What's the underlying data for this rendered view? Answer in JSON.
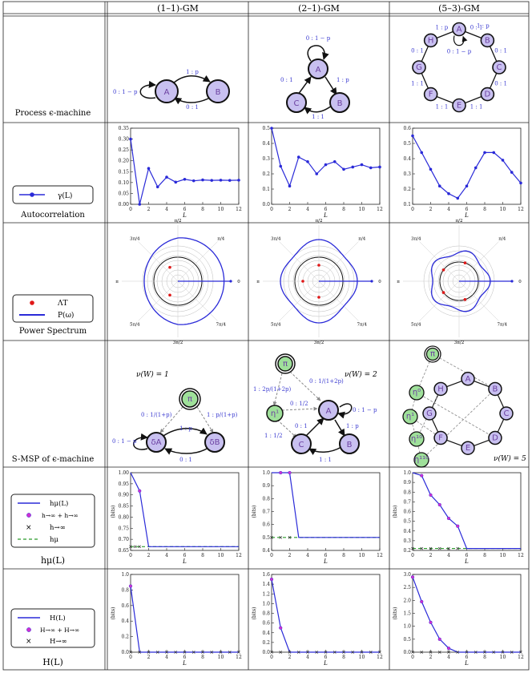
{
  "columns": [
    "(1–1)-GM",
    "(2–1)-GM",
    "(5–3)-GM"
  ],
  "rows": [
    "Process ϵ-machine",
    "Autocorrelation",
    "Power Spectrum",
    "S-MSP of ϵ-machine",
    "hμ(L)",
    "H(L)"
  ],
  "legends": {
    "autocorrelation": [
      "γ(L)"
    ],
    "power": [
      "ΛT",
      "P(ω)"
    ],
    "hmu": [
      "hμ(L)",
      "h→∞ + h→∞",
      "h→∞",
      "hμ"
    ],
    "H": [
      "H(L)",
      "H→∞ + H→∞",
      "H→∞"
    ]
  },
  "machines": {
    "m11": {
      "states": [
        "A",
        "B"
      ],
      "edges": [
        "0 : 1 − p",
        "1 : p",
        "0 : 1"
      ]
    },
    "m21": {
      "states": [
        "A",
        "B",
        "C"
      ],
      "edges": [
        "0 : 1 − p",
        "1 : p",
        "0 : 1",
        "1 : 1"
      ]
    },
    "m53": {
      "states": [
        "A",
        "B",
        "C",
        "D",
        "E",
        "F",
        "G",
        "H"
      ],
      "edges": [
        "1 : p",
        "0 : 1 − p",
        "0 : 1",
        "0 : 1",
        "0 : 1",
        "1 : 1",
        "1 : 1",
        "1 : 1",
        "0 : 1"
      ]
    }
  },
  "msp": {
    "m11": {
      "nu": "ν(W) = 1",
      "states": [
        "π",
        "δA",
        "δB"
      ],
      "edges": [
        "0 : 1/(1+p)",
        "1 : p/(1+p)",
        "1 : p",
        "0 : 1 − p",
        "0 : 1"
      ]
    },
    "m21": {
      "nu": "ν(W) = 2",
      "states": [
        "π",
        "η¹",
        "A",
        "B",
        "C"
      ],
      "edges": [
        "1 : 2p/(1+2p)",
        "0 : 1/(1+2p)",
        "0 : 1/2",
        "1 : 1/2",
        "0 : 1 − p",
        "1 : p",
        "0 : 1",
        "1 : 1"
      ]
    },
    "m53": {
      "nu": "ν(W) = 5",
      "states": [
        "π",
        "η⁰",
        "η¹",
        "η¹⁰",
        "η¹¹⁰",
        "A",
        "B",
        "C",
        "D",
        "E",
        "F",
        "G",
        "H"
      ]
    }
  },
  "chart_data": [
    {
      "type": "line",
      "row": "Autocorrelation",
      "column": "(1–1)-GM",
      "xlabel": "L",
      "ylabel": "",
      "xlim": [
        0,
        12
      ],
      "ylim": [
        0,
        0.35
      ],
      "xticks": [
        "0",
        "2",
        "4",
        "6",
        "8",
        "10",
        "12"
      ],
      "yticks": [
        "0.00",
        "0.05",
        "0.10",
        "0.15",
        "0.20",
        "0.25",
        "0.30",
        "0.35"
      ],
      "series": [
        {
          "x": [
            0,
            1,
            2,
            3,
            4,
            5,
            6,
            7,
            8,
            9,
            10,
            11,
            12
          ],
          "y": [
            0.3,
            -0.01,
            0.165,
            0.08,
            0.125,
            0.102,
            0.115,
            0.108,
            0.112,
            0.11,
            0.111,
            0.11,
            0.111
          ]
        }
      ]
    },
    {
      "type": "line",
      "row": "Autocorrelation",
      "column": "(2–1)-GM",
      "xlabel": "L",
      "ylabel": "",
      "xlim": [
        0,
        12
      ],
      "ylim": [
        0,
        0.5
      ],
      "xticks": [
        "0",
        "2",
        "4",
        "6",
        "8",
        "10",
        "12"
      ],
      "yticks": [
        "0.0",
        "0.1",
        "0.2",
        "0.3",
        "0.4",
        "0.5"
      ],
      "series": [
        {
          "x": [
            0,
            1,
            2,
            3,
            4,
            5,
            6,
            7,
            8,
            9,
            10,
            11,
            12
          ],
          "y": [
            0.5,
            0.25,
            0.12,
            0.31,
            0.28,
            0.2,
            0.26,
            0.28,
            0.23,
            0.245,
            0.26,
            0.24,
            0.245
          ]
        }
      ]
    },
    {
      "type": "line",
      "row": "Autocorrelation",
      "column": "(5–3)-GM",
      "xlabel": "L",
      "ylabel": "",
      "xlim": [
        0,
        12
      ],
      "ylim": [
        0.1,
        0.6
      ],
      "xticks": [
        "0",
        "2",
        "4",
        "6",
        "8",
        "10",
        "12"
      ],
      "yticks": [
        "0.1",
        "0.2",
        "0.3",
        "0.4",
        "0.5",
        "0.6"
      ],
      "series": [
        {
          "x": [
            0,
            1,
            2,
            3,
            4,
            5,
            6,
            7,
            8,
            9,
            10,
            11,
            12
          ],
          "y": [
            0.55,
            0.44,
            0.33,
            0.22,
            0.17,
            0.14,
            0.22,
            0.34,
            0.44,
            0.44,
            0.39,
            0.31,
            0.24
          ]
        }
      ]
    },
    {
      "type": "line",
      "row": "hμ(L)",
      "column": "(1–1)-GM",
      "xlabel": "L",
      "ylabel": "(bits)",
      "xlim": [
        0,
        12
      ],
      "ylim": [
        0.65,
        1.0
      ],
      "xticks": [
        "0",
        "2",
        "4",
        "6",
        "8",
        "10",
        "12"
      ],
      "yticks": [
        "0.65",
        "0.70",
        "0.75",
        "0.80",
        "0.85",
        "0.90",
        "0.95",
        "1.00"
      ],
      "series": [
        {
          "name": "hμ(L)",
          "x": [
            0,
            1,
            2,
            3,
            4,
            5,
            6,
            7,
            8,
            9,
            10,
            11,
            12
          ],
          "y": [
            1.0,
            0.918,
            0.667,
            0.667,
            0.667,
            0.667,
            0.667,
            0.667,
            0.667,
            0.667,
            0.667,
            0.667,
            0.667
          ]
        }
      ],
      "dots": {
        "x": [
          1
        ],
        "y": [
          0.918
        ]
      },
      "crosses": {
        "x": [
          0,
          0.5,
          1
        ],
        "y": [
          0.667,
          0.667,
          0.667
        ]
      },
      "dashed": 0.667
    },
    {
      "type": "line",
      "row": "hμ(L)",
      "column": "(2–1)-GM",
      "xlabel": "L",
      "ylabel": "(bits)",
      "xlim": [
        0,
        12
      ],
      "ylim": [
        0.4,
        1.0
      ],
      "xticks": [
        "0",
        "2",
        "4",
        "6",
        "8",
        "10",
        "12"
      ],
      "yticks": [
        "0.4",
        "0.5",
        "0.6",
        "0.7",
        "0.8",
        "0.9",
        "1.0"
      ],
      "series": [
        {
          "name": "hμ(L)",
          "x": [
            0,
            1,
            2,
            3,
            4,
            5,
            6,
            7,
            8,
            9,
            10,
            11,
            12
          ],
          "y": [
            1.0,
            1.0,
            1.0,
            0.5,
            0.5,
            0.5,
            0.5,
            0.5,
            0.5,
            0.5,
            0.5,
            0.5,
            0.5
          ]
        }
      ],
      "dots": {
        "x": [
          1,
          2
        ],
        "y": [
          1.0,
          1.0
        ]
      },
      "crosses": {
        "x": [
          0,
          1,
          2
        ],
        "y": [
          0.5,
          0.5,
          0.5
        ]
      },
      "dashed": 0.5
    },
    {
      "type": "line",
      "row": "hμ(L)",
      "column": "(5–3)-GM",
      "xlabel": "L",
      "ylabel": "(bits)",
      "xlim": [
        0,
        12
      ],
      "ylim": [
        0.2,
        1.0
      ],
      "xticks": [
        "0",
        "2",
        "4",
        "6",
        "8",
        "10",
        "12"
      ],
      "yticks": [
        "0.2",
        "0.3",
        "0.4",
        "0.5",
        "0.6",
        "0.7",
        "0.8",
        "0.9",
        "1.0"
      ],
      "series": [
        {
          "name": "hμ(L)",
          "x": [
            0,
            1,
            2,
            3,
            4,
            5,
            6,
            7,
            8,
            9,
            10,
            11,
            12
          ],
          "y": [
            1.0,
            0.97,
            0.77,
            0.67,
            0.53,
            0.45,
            0.22,
            0.22,
            0.22,
            0.22,
            0.22,
            0.22,
            0.22
          ]
        }
      ],
      "dots": {
        "x": [
          1,
          2,
          3,
          4,
          5
        ],
        "y": [
          0.97,
          0.77,
          0.67,
          0.53,
          0.45
        ]
      },
      "crosses": {
        "x": [
          0,
          1,
          2,
          3,
          4,
          5
        ],
        "y": [
          0.22,
          0.22,
          0.22,
          0.22,
          0.22,
          0.22
        ]
      },
      "dashed": 0.22
    },
    {
      "type": "line",
      "row": "H(L)",
      "column": "(1–1)-GM",
      "xlabel": "L",
      "ylabel": "(bits)",
      "xlim": [
        0,
        12
      ],
      "ylim": [
        0,
        1.0
      ],
      "xticks": [
        "0",
        "2",
        "4",
        "6",
        "8",
        "10",
        "12"
      ],
      "yticks": [
        "0.0",
        "0.2",
        "0.4",
        "0.6",
        "0.8",
        "1.0"
      ],
      "series": [
        {
          "name": "H(L)",
          "x": [
            0,
            1,
            2,
            3,
            4,
            5,
            6,
            7,
            8,
            9,
            10,
            11,
            12
          ],
          "y": [
            0.85,
            0,
            0,
            0,
            0,
            0,
            0,
            0,
            0,
            0,
            0,
            0,
            0
          ]
        }
      ],
      "dots": {
        "x": [
          0
        ],
        "y": [
          0.85
        ]
      },
      "crosses": {
        "x": [
          0,
          1,
          2,
          3,
          4,
          5,
          6,
          7,
          8,
          9,
          10,
          11,
          12
        ],
        "y": [
          0,
          0,
          0,
          0,
          0,
          0,
          0,
          0,
          0,
          0,
          0,
          0,
          0
        ]
      }
    },
    {
      "type": "line",
      "row": "H(L)",
      "column": "(2–1)-GM",
      "xlabel": "L",
      "ylabel": "(bits)",
      "xlim": [
        0,
        12
      ],
      "ylim": [
        0,
        1.6
      ],
      "xticks": [
        "0",
        "2",
        "4",
        "6",
        "8",
        "10",
        "12"
      ],
      "yticks": [
        "0.0",
        "0.2",
        "0.4",
        "0.6",
        "0.8",
        "1.0",
        "1.2",
        "1.4",
        "1.6"
      ],
      "series": [
        {
          "name": "H(L)",
          "x": [
            0,
            1,
            2,
            3,
            4,
            5,
            6,
            7,
            8,
            9,
            10,
            11,
            12
          ],
          "y": [
            1.5,
            0.5,
            0,
            0,
            0,
            0,
            0,
            0,
            0,
            0,
            0,
            0,
            0
          ]
        }
      ],
      "dots": {
        "x": [
          0,
          1
        ],
        "y": [
          1.5,
          0.5
        ]
      },
      "crosses": {
        "x": [
          0,
          1,
          2,
          3,
          4,
          5,
          6,
          7,
          8,
          9,
          10,
          11,
          12
        ],
        "y": [
          0,
          0,
          0,
          0,
          0,
          0,
          0,
          0,
          0,
          0,
          0,
          0,
          0
        ]
      }
    },
    {
      "type": "line",
      "row": "H(L)",
      "column": "(5–3)-GM",
      "xlabel": "L",
      "ylabel": "(bits)",
      "xlim": [
        0,
        12
      ],
      "ylim": [
        0,
        3.0
      ],
      "xticks": [
        "0",
        "2",
        "4",
        "6",
        "8",
        "10",
        "12"
      ],
      "yticks": [
        "0.0",
        "0.5",
        "1.0",
        "1.5",
        "2.0",
        "2.5",
        "3.0"
      ],
      "series": [
        {
          "name": "H(L)",
          "x": [
            0,
            1,
            2,
            3,
            4,
            5,
            6,
            7,
            8,
            9,
            10,
            11,
            12
          ],
          "y": [
            2.9,
            1.95,
            1.15,
            0.5,
            0.15,
            0,
            0,
            0,
            0,
            0,
            0,
            0,
            0
          ]
        }
      ],
      "dots": {
        "x": [
          0,
          1,
          2,
          3,
          4
        ],
        "y": [
          2.9,
          1.95,
          1.15,
          0.5,
          0.15
        ]
      },
      "crosses": {
        "x": [
          0,
          1,
          2,
          3,
          4,
          5,
          6,
          7,
          8,
          9,
          10,
          11,
          12
        ],
        "y": [
          0,
          0,
          0,
          0,
          0,
          0,
          0,
          0,
          0,
          0,
          0,
          0,
          0
        ]
      }
    }
  ],
  "polar": [
    {
      "column": "(1–1)-GM",
      "labels": [
        "π/2",
        "3π/4",
        "π",
        "5π/4",
        "3π/2",
        "7π/4",
        "0",
        "π/4"
      ]
    },
    {
      "column": "(2–1)-GM",
      "labels": [
        "π/2",
        "3π/4",
        "π",
        "5π/4",
        "3π/2",
        "7π/4",
        "0",
        "π/4"
      ]
    },
    {
      "column": "(5–3)-GM",
      "labels": [
        "π/2",
        "3π/4",
        "π",
        "5π/4",
        "3π/2",
        "7π/4",
        "0",
        "π/4"
      ]
    }
  ],
  "colors": {
    "blue": "#2a2ad8",
    "state_fill": "#c8c0f0",
    "msp_fill": "#9fe09a",
    "red": "#e01818",
    "magenta": "#d030d0",
    "green": "#2a9a2a"
  }
}
